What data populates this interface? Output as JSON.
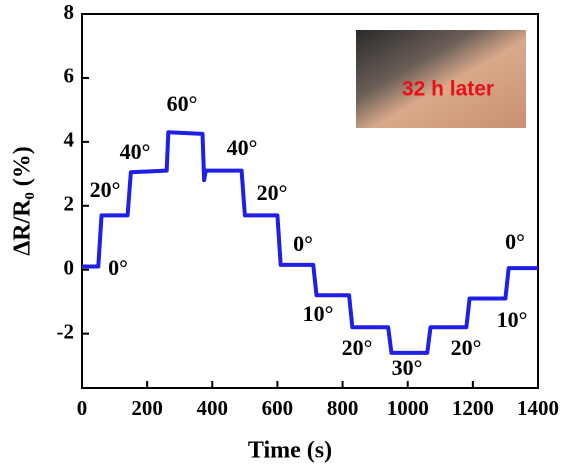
{
  "chart_data": {
    "type": "line",
    "x_label": "Time (s)",
    "y_label": "ΔR/R₀ (%)",
    "xlim": [
      0,
      1400
    ],
    "ylim": [
      -3.7,
      8
    ],
    "xticks": [
      0,
      200,
      400,
      600,
      800,
      1000,
      1200,
      1400
    ],
    "yticks": [
      -2,
      0,
      2,
      4,
      6,
      8
    ],
    "series": [
      {
        "color": "#1f1fe6",
        "x": [
          0,
          50,
          60,
          140,
          150,
          260,
          265,
          370,
          375,
          380,
          490,
          500,
          600,
          610,
          710,
          720,
          820,
          830,
          940,
          950,
          1060,
          1070,
          1180,
          1190,
          1300,
          1310,
          1400
        ],
        "values": [
          0.1,
          0.1,
          1.7,
          1.7,
          3.05,
          3.1,
          4.3,
          4.25,
          2.8,
          3.1,
          3.1,
          1.7,
          1.7,
          0.15,
          0.15,
          -0.8,
          -0.8,
          -1.8,
          -1.8,
          -2.6,
          -2.6,
          -1.8,
          -1.8,
          -0.9,
          -0.9,
          0.05,
          0.05
        ]
      }
    ],
    "annotations": [
      "0°",
      "20°",
      "40°",
      "60°",
      "40°",
      "20°",
      "0°",
      "10°",
      "20°",
      "30°",
      "20°",
      "10°",
      "0°"
    ],
    "inset_label": "32 h later"
  }
}
